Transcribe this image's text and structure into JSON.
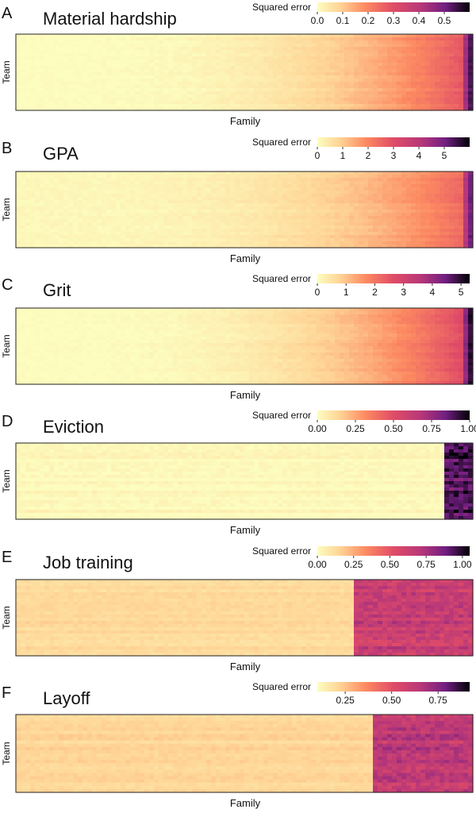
{
  "chart_data": [
    {
      "panel": "A",
      "title": "Material hardship",
      "type": "heatmap",
      "xlabel": "Family",
      "ylabel": "Team",
      "legend_title": "Squared error",
      "legend_ticks": [
        "0.0",
        "0.1",
        "0.2",
        "0.3",
        "0.4",
        "0.5"
      ],
      "legend_range": [
        0,
        0.6
      ],
      "pattern": "gradient",
      "start": 0.0,
      "rise": 0.5
    },
    {
      "panel": "B",
      "title": "GPA",
      "type": "heatmap",
      "xlabel": "Family",
      "ylabel": "Team",
      "legend_title": "Squared error",
      "legend_ticks": [
        "0",
        "1",
        "2",
        "3",
        "4",
        "5"
      ],
      "legend_range": [
        0,
        6
      ],
      "pattern": "gradient",
      "start": 0.02,
      "rise": 0.42
    },
    {
      "panel": "C",
      "title": "Grit",
      "type": "heatmap",
      "xlabel": "Family",
      "ylabel": "Team",
      "legend_title": "Squared error",
      "legend_ticks": [
        "0",
        "1",
        "2",
        "3",
        "4",
        "5"
      ],
      "legend_range": [
        0,
        5.3
      ],
      "pattern": "gradient",
      "start": 0.0,
      "rise": 0.55
    },
    {
      "panel": "D",
      "title": "Eviction",
      "type": "heatmap",
      "xlabel": "Family",
      "ylabel": "Team",
      "legend_title": "Squared error",
      "legend_ticks": [
        "0.00",
        "0.25",
        "0.50",
        "0.75",
        "1.00"
      ],
      "legend_range": [
        0,
        1
      ],
      "pattern": "binary",
      "split": 0.935,
      "low_value": 0.02,
      "high_value": 0.9
    },
    {
      "panel": "E",
      "title": "Job training",
      "type": "heatmap",
      "xlabel": "Family",
      "ylabel": "Team",
      "legend_title": "Squared error",
      "legend_ticks": [
        "0.00",
        "0.25",
        "0.50",
        "0.75",
        "1.00"
      ],
      "legend_range": [
        0,
        1.05
      ],
      "pattern": "binary",
      "split": 0.735,
      "low_value": 0.12,
      "high_value": 0.6
    },
    {
      "panel": "F",
      "title": "Layoff",
      "type": "heatmap",
      "xlabel": "Family",
      "ylabel": "Team",
      "legend_title": "Squared error",
      "legend_ticks": [
        "0.25",
        "0.50",
        "0.75"
      ],
      "legend_range": [
        0.1,
        0.92
      ],
      "pattern": "binary",
      "split": 0.785,
      "low_value": 0.14,
      "high_value": 0.65
    }
  ]
}
